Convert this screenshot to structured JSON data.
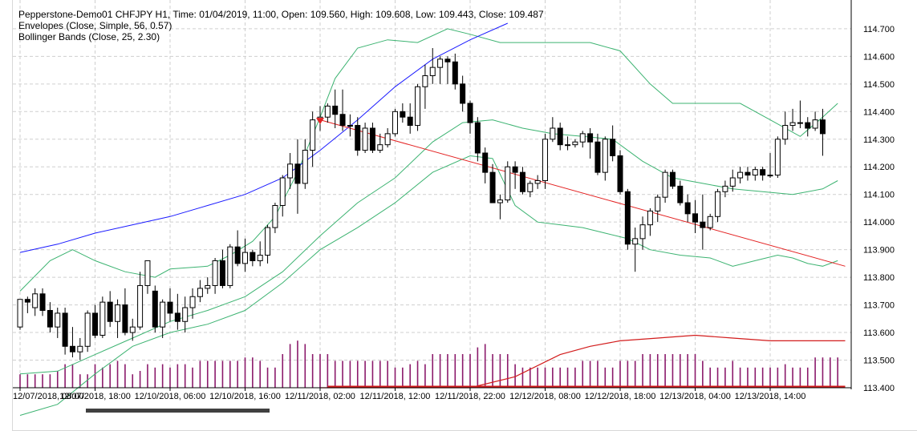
{
  "legend": {
    "line1": "Pepperstone-Demo01 CHFJPY H1, Time: 01/04/2019, 11:00, Open: 109.560, High: 109.608, Low: 109.443, Close: 109.487",
    "line2": "Envelopes (Close, Simple, 56, 0.57)",
    "line3": "Bollinger Bands (Close, 25, 2.30)"
  },
  "colors": {
    "bull": "#ffffff",
    "bear": "#000000",
    "outline": "#000000",
    "bollinger": "#3cb371",
    "envelope": "#1a1aff",
    "trend": "#e32222",
    "volume": "#8b1a6b",
    "volume_ma": "#d21c1c",
    "grid": "#cfcfcf"
  },
  "chart_data": {
    "type": "candlestick",
    "symbol": "CHFJPY",
    "timeframe": "H1",
    "grid": true,
    "ylim": [
      113.4,
      114.72
    ],
    "y_ticks": [
      "114.700",
      "114.600",
      "114.500",
      "114.400",
      "114.300",
      "114.200",
      "114.100",
      "114.000",
      "113.900",
      "113.800",
      "113.700",
      "113.600",
      "113.500",
      "113.400"
    ],
    "x_ticks": [
      "12/07/2018, 08:00",
      "12/07/2018, 18:00",
      "12/10/2018, 06:00",
      "12/10/2018, 16:00",
      "12/11/2018, 02:00",
      "12/11/2018, 12:00",
      "12/11/2018, 22:00",
      "12/12/2018, 08:00",
      "12/12/2018, 18:00",
      "12/13/2018, 04:00",
      "12/13/2018, 14:00"
    ],
    "candles": [
      {
        "o": 113.62,
        "h": 113.72,
        "l": 113.61,
        "c": 113.72
      },
      {
        "o": 113.72,
        "h": 113.73,
        "l": 113.67,
        "c": 113.71
      },
      {
        "o": 113.69,
        "h": 113.76,
        "l": 113.66,
        "c": 113.74
      },
      {
        "o": 113.74,
        "h": 113.76,
        "l": 113.66,
        "c": 113.68
      },
      {
        "o": 113.68,
        "h": 113.71,
        "l": 113.6,
        "c": 113.62
      },
      {
        "o": 113.62,
        "h": 113.69,
        "l": 113.58,
        "c": 113.67
      },
      {
        "o": 113.67,
        "h": 113.69,
        "l": 113.52,
        "c": 113.55
      },
      {
        "o": 113.55,
        "h": 113.62,
        "l": 113.51,
        "c": 113.53
      },
      {
        "o": 113.53,
        "h": 113.58,
        "l": 113.5,
        "c": 113.55
      },
      {
        "o": 113.55,
        "h": 113.68,
        "l": 113.53,
        "c": 113.67
      },
      {
        "o": 113.67,
        "h": 113.7,
        "l": 113.58,
        "c": 113.59
      },
      {
        "o": 113.59,
        "h": 113.73,
        "l": 113.58,
        "c": 113.71
      },
      {
        "o": 113.71,
        "h": 113.75,
        "l": 113.62,
        "c": 113.64
      },
      {
        "o": 113.64,
        "h": 113.72,
        "l": 113.58,
        "c": 113.7
      },
      {
        "o": 113.7,
        "h": 113.76,
        "l": 113.59,
        "c": 113.6
      },
      {
        "o": 113.6,
        "h": 113.65,
        "l": 113.57,
        "c": 113.62
      },
      {
        "o": 113.62,
        "h": 113.82,
        "l": 113.61,
        "c": 113.77
      },
      {
        "o": 113.77,
        "h": 113.86,
        "l": 113.74,
        "c": 113.86
      },
      {
        "o": 113.75,
        "h": 113.77,
        "l": 113.6,
        "c": 113.62
      },
      {
        "o": 113.62,
        "h": 113.72,
        "l": 113.58,
        "c": 113.71
      },
      {
        "o": 113.71,
        "h": 113.76,
        "l": 113.64,
        "c": 113.67
      },
      {
        "o": 113.67,
        "h": 113.74,
        "l": 113.61,
        "c": 113.64
      },
      {
        "o": 113.64,
        "h": 113.73,
        "l": 113.6,
        "c": 113.69
      },
      {
        "o": 113.69,
        "h": 113.76,
        "l": 113.65,
        "c": 113.73
      },
      {
        "o": 113.73,
        "h": 113.79,
        "l": 113.71,
        "c": 113.76
      },
      {
        "o": 113.76,
        "h": 113.8,
        "l": 113.74,
        "c": 113.77
      },
      {
        "o": 113.77,
        "h": 113.87,
        "l": 113.74,
        "c": 113.86
      },
      {
        "o": 113.86,
        "h": 113.9,
        "l": 113.76,
        "c": 113.77
      },
      {
        "o": 113.77,
        "h": 113.92,
        "l": 113.76,
        "c": 113.91
      },
      {
        "o": 113.91,
        "h": 113.97,
        "l": 113.84,
        "c": 113.85
      },
      {
        "o": 113.85,
        "h": 113.94,
        "l": 113.82,
        "c": 113.89
      },
      {
        "o": 113.89,
        "h": 113.9,
        "l": 113.84,
        "c": 113.86
      },
      {
        "o": 113.86,
        "h": 113.93,
        "l": 113.84,
        "c": 113.88
      },
      {
        "o": 113.88,
        "h": 113.99,
        "l": 113.85,
        "c": 113.98
      },
      {
        "o": 113.98,
        "h": 114.07,
        "l": 113.96,
        "c": 114.06
      },
      {
        "o": 114.06,
        "h": 114.17,
        "l": 114.02,
        "c": 114.16
      },
      {
        "o": 114.16,
        "h": 114.25,
        "l": 114.12,
        "c": 114.21
      },
      {
        "o": 114.21,
        "h": 114.3,
        "l": 114.03,
        "c": 114.14
      },
      {
        "o": 114.14,
        "h": 114.3,
        "l": 114.12,
        "c": 114.26
      },
      {
        "o": 114.26,
        "h": 114.4,
        "l": 114.2,
        "c": 114.37
      },
      {
        "o": 114.37,
        "h": 114.42,
        "l": 114.33,
        "c": 114.38
      },
      {
        "o": 114.38,
        "h": 114.43,
        "l": 114.36,
        "c": 114.42
      },
      {
        "o": 114.42,
        "h": 114.48,
        "l": 114.34,
        "c": 114.39
      },
      {
        "o": 114.39,
        "h": 114.48,
        "l": 114.33,
        "c": 114.35
      },
      {
        "o": 114.35,
        "h": 114.39,
        "l": 114.31,
        "c": 114.35
      },
      {
        "o": 114.35,
        "h": 114.38,
        "l": 114.24,
        "c": 114.26
      },
      {
        "o": 114.26,
        "h": 114.36,
        "l": 114.25,
        "c": 114.34
      },
      {
        "o": 114.34,
        "h": 114.36,
        "l": 114.25,
        "c": 114.26
      },
      {
        "o": 114.26,
        "h": 114.32,
        "l": 114.25,
        "c": 114.28
      },
      {
        "o": 114.28,
        "h": 114.34,
        "l": 114.27,
        "c": 114.32
      },
      {
        "o": 114.32,
        "h": 114.41,
        "l": 114.31,
        "c": 114.4
      },
      {
        "o": 114.4,
        "h": 114.43,
        "l": 114.36,
        "c": 114.38
      },
      {
        "o": 114.38,
        "h": 114.43,
        "l": 114.32,
        "c": 114.35
      },
      {
        "o": 114.35,
        "h": 114.5,
        "l": 114.33,
        "c": 114.49
      },
      {
        "o": 114.49,
        "h": 114.57,
        "l": 114.41,
        "c": 114.53
      },
      {
        "o": 114.53,
        "h": 114.63,
        "l": 114.5,
        "c": 114.56
      },
      {
        "o": 114.56,
        "h": 114.6,
        "l": 114.5,
        "c": 114.59
      },
      {
        "o": 114.59,
        "h": 114.6,
        "l": 114.5,
        "c": 114.58
      },
      {
        "o": 114.58,
        "h": 114.61,
        "l": 114.48,
        "c": 114.5
      },
      {
        "o": 114.5,
        "h": 114.53,
        "l": 114.4,
        "c": 114.43
      },
      {
        "o": 114.43,
        "h": 114.44,
        "l": 114.32,
        "c": 114.36
      },
      {
        "o": 114.36,
        "h": 114.38,
        "l": 114.22,
        "c": 114.25
      },
      {
        "o": 114.25,
        "h": 114.27,
        "l": 114.14,
        "c": 114.18
      },
      {
        "o": 114.18,
        "h": 114.21,
        "l": 114.07,
        "c": 114.07
      },
      {
        "o": 114.07,
        "h": 114.1,
        "l": 114.01,
        "c": 114.08
      },
      {
        "o": 114.08,
        "h": 114.22,
        "l": 114.07,
        "c": 114.2
      },
      {
        "o": 114.2,
        "h": 114.22,
        "l": 114.12,
        "c": 114.18
      },
      {
        "o": 114.18,
        "h": 114.2,
        "l": 114.1,
        "c": 114.11
      },
      {
        "o": 114.11,
        "h": 114.15,
        "l": 114.09,
        "c": 114.14
      },
      {
        "o": 114.14,
        "h": 114.17,
        "l": 114.12,
        "c": 114.15
      },
      {
        "o": 114.15,
        "h": 114.32,
        "l": 114.12,
        "c": 114.3
      },
      {
        "o": 114.3,
        "h": 114.38,
        "l": 114.29,
        "c": 114.34
      },
      {
        "o": 114.34,
        "h": 114.36,
        "l": 114.26,
        "c": 114.28
      },
      {
        "o": 114.28,
        "h": 114.31,
        "l": 114.26,
        "c": 114.28
      },
      {
        "o": 114.28,
        "h": 114.3,
        "l": 114.27,
        "c": 114.29
      },
      {
        "o": 114.29,
        "h": 114.33,
        "l": 114.27,
        "c": 114.32
      },
      {
        "o": 114.32,
        "h": 114.34,
        "l": 114.23,
        "c": 114.29
      },
      {
        "o": 114.29,
        "h": 114.32,
        "l": 114.17,
        "c": 114.18
      },
      {
        "o": 114.18,
        "h": 114.31,
        "l": 114.15,
        "c": 114.3
      },
      {
        "o": 114.3,
        "h": 114.35,
        "l": 114.22,
        "c": 114.24
      },
      {
        "o": 114.24,
        "h": 114.26,
        "l": 114.1,
        "c": 114.11
      },
      {
        "o": 114.11,
        "h": 114.12,
        "l": 113.9,
        "c": 113.92
      },
      {
        "o": 113.92,
        "h": 113.98,
        "l": 113.82,
        "c": 113.94
      },
      {
        "o": 113.94,
        "h": 114.02,
        "l": 113.9,
        "c": 113.99
      },
      {
        "o": 113.99,
        "h": 114.05,
        "l": 113.95,
        "c": 114.04
      },
      {
        "o": 114.04,
        "h": 114.1,
        "l": 114.0,
        "c": 114.09
      },
      {
        "o": 114.09,
        "h": 114.19,
        "l": 114.07,
        "c": 114.18
      },
      {
        "o": 114.18,
        "h": 114.19,
        "l": 114.12,
        "c": 114.13
      },
      {
        "o": 114.13,
        "h": 114.15,
        "l": 114.06,
        "c": 114.07
      },
      {
        "o": 114.07,
        "h": 114.1,
        "l": 114.0,
        "c": 114.03
      },
      {
        "o": 114.03,
        "h": 114.08,
        "l": 113.96,
        "c": 114.0
      },
      {
        "o": 114.0,
        "h": 114.1,
        "l": 113.9,
        "c": 113.98
      },
      {
        "o": 113.98,
        "h": 114.03,
        "l": 113.97,
        "c": 114.02
      },
      {
        "o": 114.02,
        "h": 114.12,
        "l": 114.0,
        "c": 114.11
      },
      {
        "o": 114.11,
        "h": 114.15,
        "l": 114.09,
        "c": 114.13
      },
      {
        "o": 114.13,
        "h": 114.19,
        "l": 114.11,
        "c": 114.16
      },
      {
        "o": 114.16,
        "h": 114.2,
        "l": 114.14,
        "c": 114.18
      },
      {
        "o": 114.18,
        "h": 114.2,
        "l": 114.15,
        "c": 114.17
      },
      {
        "o": 114.17,
        "h": 114.2,
        "l": 114.15,
        "c": 114.19
      },
      {
        "o": 114.19,
        "h": 114.2,
        "l": 114.15,
        "c": 114.17
      },
      {
        "o": 114.17,
        "h": 114.25,
        "l": 114.16,
        "c": 114.17
      },
      {
        "o": 114.17,
        "h": 114.31,
        "l": 114.16,
        "c": 114.3
      },
      {
        "o": 114.3,
        "h": 114.4,
        "l": 114.28,
        "c": 114.35
      },
      {
        "o": 114.35,
        "h": 114.41,
        "l": 114.33,
        "c": 114.36
      },
      {
        "o": 114.36,
        "h": 114.44,
        "l": 114.34,
        "c": 114.36
      },
      {
        "o": 114.36,
        "h": 114.38,
        "l": 114.31,
        "c": 114.34
      },
      {
        "o": 114.34,
        "h": 114.4,
        "l": 114.33,
        "c": 114.37
      },
      {
        "o": 114.37,
        "h": 114.41,
        "l": 114.24,
        "c": 114.32
      }
    ],
    "bollinger_upper": [
      {
        "i": 0,
        "y": 113.75
      },
      {
        "i": 4,
        "y": 113.86
      },
      {
        "i": 7,
        "y": 113.9
      },
      {
        "i": 10,
        "y": 113.86
      },
      {
        "i": 14,
        "y": 113.82
      },
      {
        "i": 18,
        "y": 113.8
      },
      {
        "i": 20,
        "y": 113.83
      },
      {
        "i": 25,
        "y": 113.84
      },
      {
        "i": 28,
        "y": 113.88
      },
      {
        "i": 31,
        "y": 113.93
      },
      {
        "i": 34,
        "y": 114.02
      },
      {
        "i": 37,
        "y": 114.18
      },
      {
        "i": 40,
        "y": 114.38
      },
      {
        "i": 42,
        "y": 114.52
      },
      {
        "i": 45,
        "y": 114.63
      },
      {
        "i": 49,
        "y": 114.66
      },
      {
        "i": 53,
        "y": 114.65
      },
      {
        "i": 57,
        "y": 114.7
      },
      {
        "i": 60,
        "y": 114.68
      },
      {
        "i": 64,
        "y": 114.65
      },
      {
        "i": 70,
        "y": 114.65
      },
      {
        "i": 76,
        "y": 114.65
      },
      {
        "i": 80,
        "y": 114.62
      },
      {
        "i": 84,
        "y": 114.5
      },
      {
        "i": 87,
        "y": 114.43
      },
      {
        "i": 92,
        "y": 114.43
      },
      {
        "i": 96,
        "y": 114.43
      },
      {
        "i": 100,
        "y": 114.37
      },
      {
        "i": 104,
        "y": 114.31
      },
      {
        "i": 107,
        "y": 114.38
      },
      {
        "i": 109,
        "y": 114.43
      }
    ],
    "bollinger_middle": [
      {
        "i": 0,
        "y": 113.45
      },
      {
        "i": 5,
        "y": 113.46
      },
      {
        "i": 10,
        "y": 113.52
      },
      {
        "i": 15,
        "y": 113.58
      },
      {
        "i": 20,
        "y": 113.64
      },
      {
        "i": 25,
        "y": 113.68
      },
      {
        "i": 30,
        "y": 113.73
      },
      {
        "i": 35,
        "y": 113.82
      },
      {
        "i": 40,
        "y": 113.95
      },
      {
        "i": 45,
        "y": 114.07
      },
      {
        "i": 50,
        "y": 114.16
      },
      {
        "i": 55,
        "y": 114.29
      },
      {
        "i": 59,
        "y": 114.36
      },
      {
        "i": 63,
        "y": 114.37
      },
      {
        "i": 67,
        "y": 114.34
      },
      {
        "i": 71,
        "y": 114.32
      },
      {
        "i": 75,
        "y": 114.31
      },
      {
        "i": 79,
        "y": 114.3
      },
      {
        "i": 83,
        "y": 114.22
      },
      {
        "i": 87,
        "y": 114.16
      },
      {
        "i": 91,
        "y": 114.14
      },
      {
        "i": 95,
        "y": 114.12
      },
      {
        "i": 99,
        "y": 114.11
      },
      {
        "i": 103,
        "y": 114.1
      },
      {
        "i": 107,
        "y": 114.12
      },
      {
        "i": 109,
        "y": 114.15
      }
    ],
    "bollinger_lower": [
      {
        "i": 0,
        "y": 113.3
      },
      {
        "i": 5,
        "y": 113.34
      },
      {
        "i": 10,
        "y": 113.45
      },
      {
        "i": 15,
        "y": 113.55
      },
      {
        "i": 20,
        "y": 113.6
      },
      {
        "i": 25,
        "y": 113.63
      },
      {
        "i": 30,
        "y": 113.68
      },
      {
        "i": 35,
        "y": 113.78
      },
      {
        "i": 40,
        "y": 113.9
      },
      {
        "i": 45,
        "y": 113.98
      },
      {
        "i": 50,
        "y": 114.07
      },
      {
        "i": 55,
        "y": 114.18
      },
      {
        "i": 60,
        "y": 114.24
      },
      {
        "i": 63,
        "y": 114.23
      },
      {
        "i": 66,
        "y": 114.06
      },
      {
        "i": 69,
        "y": 114.0
      },
      {
        "i": 72,
        "y": 113.99
      },
      {
        "i": 75,
        "y": 113.98
      },
      {
        "i": 78,
        "y": 113.96
      },
      {
        "i": 81,
        "y": 113.94
      },
      {
        "i": 84,
        "y": 113.9
      },
      {
        "i": 88,
        "y": 113.88
      },
      {
        "i": 92,
        "y": 113.87
      },
      {
        "i": 95,
        "y": 113.84
      },
      {
        "i": 98,
        "y": 113.86
      },
      {
        "i": 101,
        "y": 113.88
      },
      {
        "i": 103,
        "y": 113.87
      },
      {
        "i": 105,
        "y": 113.85
      },
      {
        "i": 107,
        "y": 113.84
      },
      {
        "i": 109,
        "y": 113.86
      }
    ],
    "envelope_line": [
      {
        "i": 0,
        "y": 113.89
      },
      {
        "i": 5,
        "y": 113.92
      },
      {
        "i": 10,
        "y": 113.96
      },
      {
        "i": 15,
        "y": 113.99
      },
      {
        "i": 20,
        "y": 114.02
      },
      {
        "i": 25,
        "y": 114.06
      },
      {
        "i": 30,
        "y": 114.1
      },
      {
        "i": 35,
        "y": 114.16
      },
      {
        "i": 40,
        "y": 114.26
      },
      {
        "i": 45,
        "y": 114.37
      },
      {
        "i": 50,
        "y": 114.49
      },
      {
        "i": 55,
        "y": 114.59
      },
      {
        "i": 60,
        "y": 114.66
      },
      {
        "i": 65,
        "y": 114.72
      }
    ],
    "trend_line": [
      {
        "i": 40,
        "y": 114.37
      },
      {
        "i": 110,
        "y": 113.84
      }
    ],
    "volume": [
      4,
      4,
      4,
      4,
      4,
      5,
      7,
      7,
      4,
      4,
      7,
      6,
      7,
      8,
      7,
      4,
      5,
      7,
      6,
      7,
      6,
      7,
      7,
      6,
      8,
      8,
      8,
      8,
      8,
      8,
      9,
      9,
      8,
      6,
      6,
      10,
      13,
      14,
      13,
      10,
      10,
      10,
      8,
      8,
      8,
      8,
      8,
      8,
      8,
      8,
      6,
      6,
      7,
      8,
      7,
      10,
      10,
      10,
      10,
      10,
      10,
      12,
      13,
      10,
      10,
      10,
      7,
      6,
      6,
      6,
      6,
      6,
      6,
      6,
      6,
      8,
      8,
      8,
      6,
      6,
      8,
      8,
      8,
      10,
      10,
      10,
      10,
      10,
      10,
      10,
      10,
      8,
      6,
      6,
      6,
      8,
      6,
      6,
      6,
      6,
      6,
      6,
      7,
      6,
      6,
      6,
      9,
      9,
      9,
      9
    ],
    "volume_ma": [
      {
        "i": 40,
        "y": 113.4
      },
      {
        "i": 60,
        "y": 113.4
      },
      {
        "i": 66,
        "y": 113.44
      },
      {
        "i": 72,
        "y": 113.52
      },
      {
        "i": 76,
        "y": 113.55
      },
      {
        "i": 80,
        "y": 113.57
      },
      {
        "i": 85,
        "y": 113.58
      },
      {
        "i": 90,
        "y": 113.59
      },
      {
        "i": 95,
        "y": 113.58
      },
      {
        "i": 100,
        "y": 113.57
      },
      {
        "i": 110,
        "y": 113.57
      }
    ],
    "arrow_markers": [
      {
        "i": 40,
        "y": 114.36,
        "shape": "triangle-down"
      }
    ]
  }
}
